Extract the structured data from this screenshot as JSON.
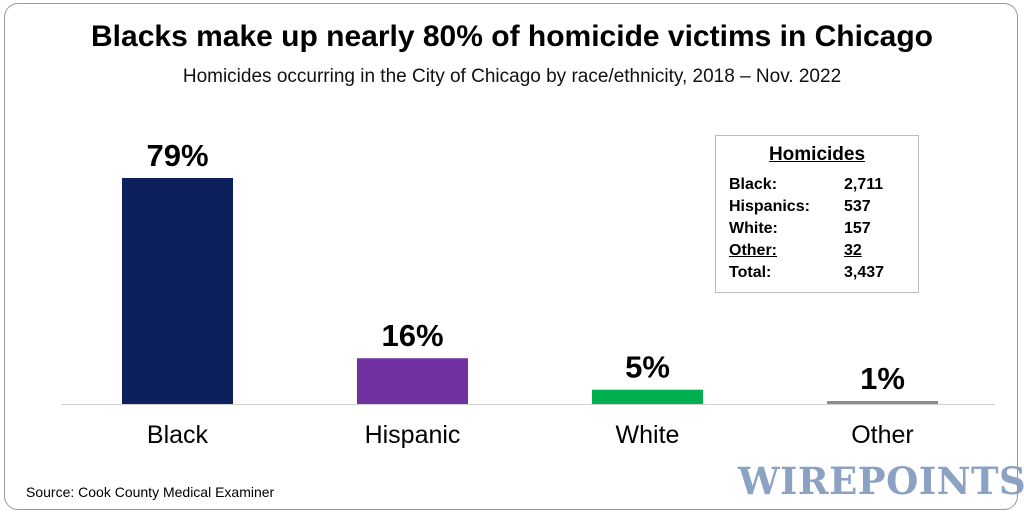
{
  "title": "Blacks make up nearly 80% of homicide victims in Chicago",
  "subtitle": "Homicides occurring in the City of Chicago by race/ethnicity, 2018 – Nov. 2022",
  "source": "Source: Cook County Medical Examiner",
  "logo_text": "WIREPOINTS",
  "legend": {
    "title": "Homicides",
    "rows": [
      {
        "label": "Black:",
        "value": "2,711"
      },
      {
        "label": "Hispanics:",
        "value": "537"
      },
      {
        "label": "White:",
        "value": "157"
      },
      {
        "label": "Other:",
        "value": "32"
      },
      {
        "label": "Total:",
        "value": "3,437"
      }
    ]
  },
  "chart_data": {
    "type": "bar",
    "title": "Blacks make up nearly 80% of homicide victims in Chicago",
    "subtitle": "Homicides occurring in the City of Chicago by race/ethnicity, 2018 – Nov. 2022",
    "categories": [
      "Black",
      "Hispanic",
      "White",
      "Other"
    ],
    "values": [
      79,
      16,
      5,
      1
    ],
    "data_labels": [
      "79%",
      "16%",
      "5%",
      "1%"
    ],
    "colors": [
      "#0d1f5c",
      "#7030a0",
      "#00b050",
      "#8c8c8c"
    ],
    "ylim": [
      0,
      80
    ],
    "grid": false,
    "legend": "none"
  }
}
